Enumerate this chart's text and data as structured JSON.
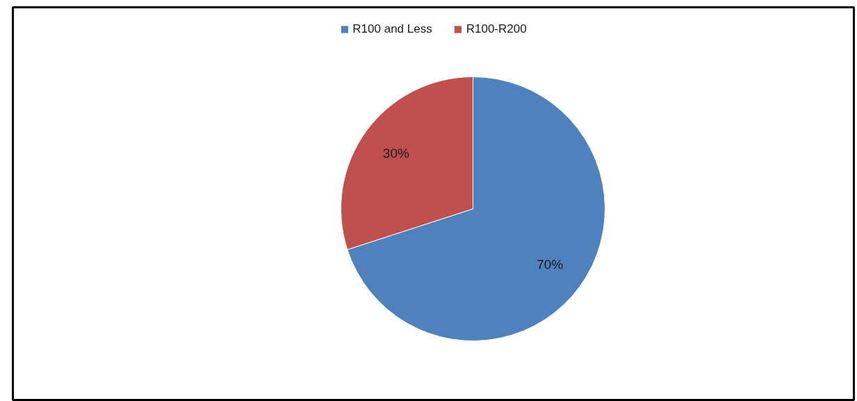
{
  "chart_data": {
    "type": "pie",
    "categories": [
      "R100 and Less",
      "R100-R200"
    ],
    "values": [
      70,
      30
    ],
    "colors": [
      "#4f81bd",
      "#c0504d"
    ],
    "value_labels": [
      "70%",
      "30%"
    ],
    "legend": "top"
  }
}
